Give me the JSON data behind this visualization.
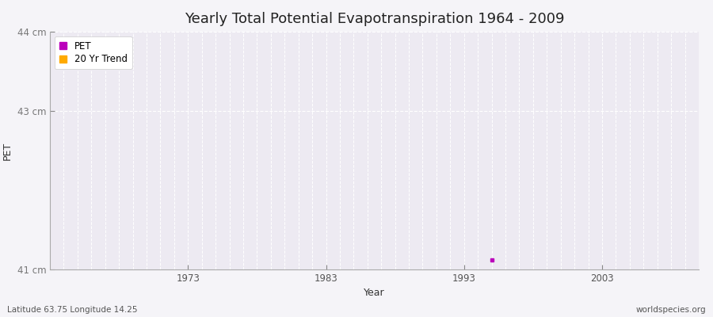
{
  "title": "Yearly Total Potential Evapotranspiration 1964 - 2009",
  "xlabel": "Year",
  "ylabel": "PET",
  "background_color": "#f5f4f8",
  "plot_bg_color": "#edeaf2",
  "grid_color": "#ffffff",
  "ylim": [
    41,
    44
  ],
  "xlim": [
    1963,
    2010
  ],
  "yticks": [
    41,
    43,
    44
  ],
  "ytick_labels": [
    "41 cm",
    "43 cm",
    "44 cm"
  ],
  "xticks": [
    1973,
    1983,
    1993,
    2003
  ],
  "pet_data": [
    [
      1995,
      41.12
    ]
  ],
  "pet_color": "#bb00bb",
  "trend_color": "#ffaa00",
  "legend_labels": [
    "PET",
    "20 Yr Trend"
  ],
  "bottom_left_text": "Latitude 63.75 Longitude 14.25",
  "bottom_right_text": "worldspecies.org",
  "title_fontsize": 13,
  "axis_fontsize": 9,
  "tick_fontsize": 8.5,
  "footer_fontsize": 7.5
}
